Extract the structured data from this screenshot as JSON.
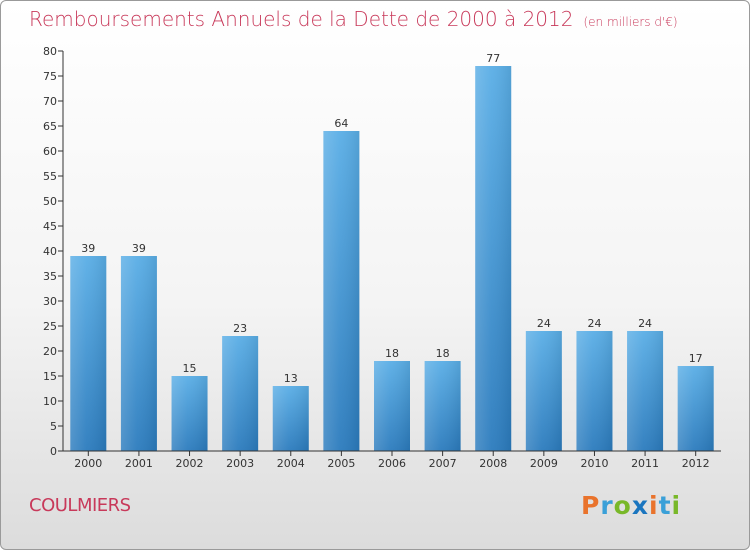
{
  "title": "Remboursements Annuels de la Dette de 2000 à 2012",
  "unit": "(en milliers d'€)",
  "commune": "COULMIERS",
  "logo": {
    "letters": [
      "P",
      "r",
      "o",
      "x",
      "i",
      "t",
      "i"
    ],
    "colors": [
      "#e9732c",
      "#3aa0d8",
      "#79b829",
      "#1a75bf",
      "#e9732c",
      "#3aa0d8",
      "#79b829"
    ]
  },
  "colors": {
    "title": "#c8395a",
    "bar_top": "#5aaee6",
    "bar_bottom": "#2b7bbd",
    "axis": "#333333",
    "grid_tick": "#333333"
  },
  "chart_data": {
    "type": "bar",
    "title": "Remboursements Annuels de la Dette de 2000 à 2012",
    "categories": [
      "2000",
      "2001",
      "2002",
      "2003",
      "2004",
      "2005",
      "2006",
      "2007",
      "2008",
      "2009",
      "2010",
      "2011",
      "2012"
    ],
    "values": [
      39,
      39,
      15,
      23,
      13,
      64,
      18,
      18,
      77,
      24,
      24,
      24,
      17
    ],
    "ylim": [
      0,
      80
    ],
    "yticks": [
      0,
      5,
      10,
      15,
      20,
      25,
      30,
      35,
      40,
      45,
      50,
      55,
      60,
      65,
      70,
      75,
      80
    ],
    "grid": false,
    "legend": "none"
  }
}
